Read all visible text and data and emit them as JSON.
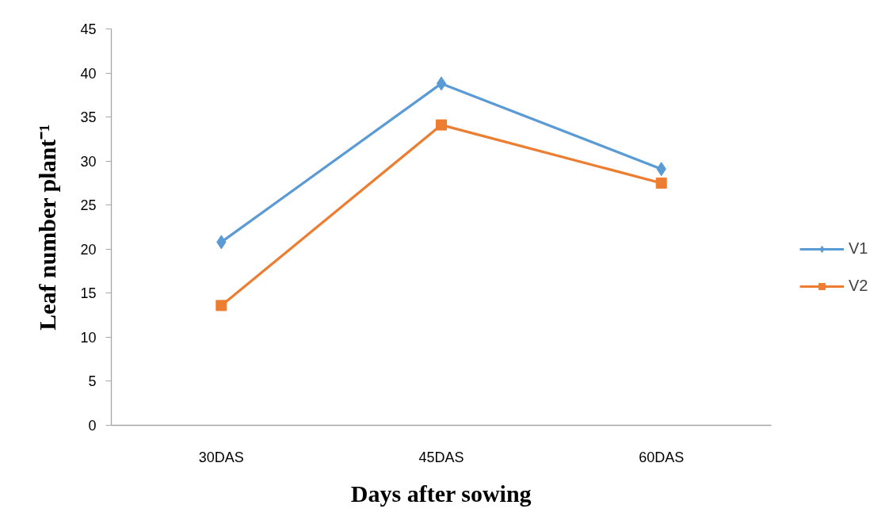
{
  "chart_data": {
    "type": "line",
    "xlabel": "Days after sowing",
    "ylabel": "Leaf number plant⁻¹",
    "categories": [
      "30DAS",
      "45DAS",
      "60DAS"
    ],
    "series": [
      {
        "name": "V1",
        "color": "#5b9bd5",
        "marker": "diamond",
        "values": [
          20.8,
          38.8,
          29.1
        ]
      },
      {
        "name": "V2",
        "color": "#ed7d31",
        "marker": "square",
        "values": [
          13.6,
          34.1,
          27.5
        ]
      }
    ],
    "ylim": [
      0,
      45
    ],
    "yticks": [
      0,
      5,
      10,
      15,
      20,
      25,
      30,
      35,
      40,
      45
    ],
    "legend": "right",
    "line_style": "solid"
  }
}
